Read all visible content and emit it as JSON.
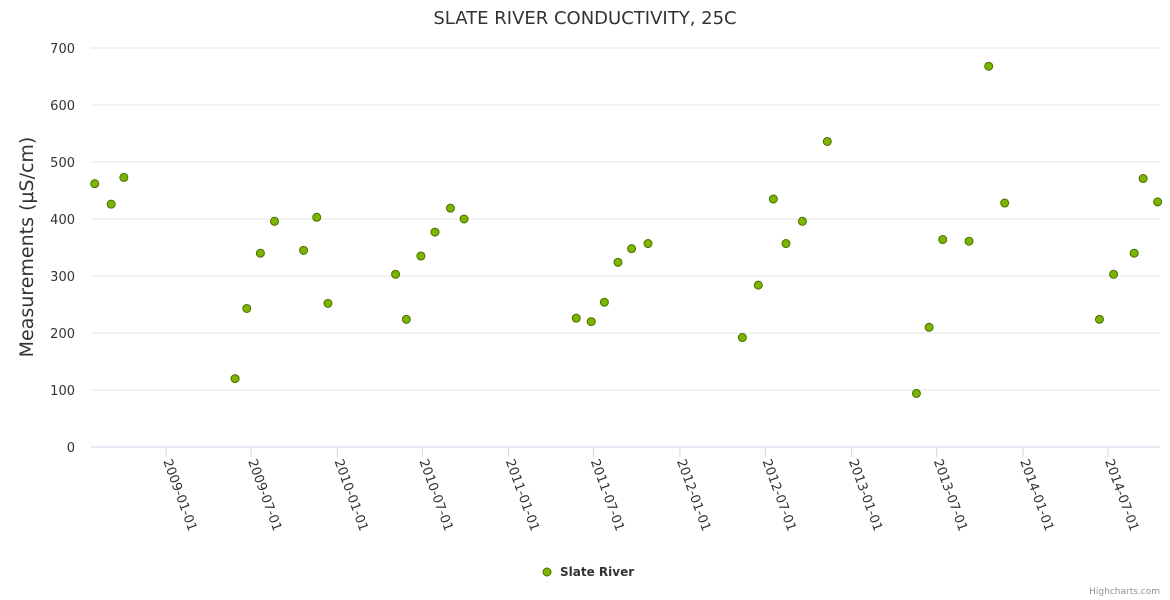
{
  "chart_data": {
    "type": "scatter",
    "title": "SLATE RIVER CONDUCTIVITY, 25C",
    "xlabel": "",
    "ylabel": "Measurements (μS/cm)",
    "ylim": [
      0,
      700
    ],
    "yticks": [
      0,
      100,
      200,
      300,
      400,
      500,
      600,
      700
    ],
    "xlim": [
      "2008-07-25",
      "2014-10-20"
    ],
    "xticks": [
      "2009-01-01",
      "2009-07-01",
      "2010-01-01",
      "2010-07-01",
      "2011-01-01",
      "2011-07-01",
      "2012-01-01",
      "2012-07-01",
      "2013-01-01",
      "2013-07-01",
      "2014-01-01",
      "2014-07-01"
    ],
    "grid": true,
    "legend": "bottom-center",
    "series": [
      {
        "name": "Slate River",
        "color": "#7cb500",
        "border": "#4a6e00",
        "points": [
          {
            "x": "2008-08-02",
            "y": 462
          },
          {
            "x": "2008-09-06",
            "y": 426
          },
          {
            "x": "2008-10-03",
            "y": 473
          },
          {
            "x": "2009-05-28",
            "y": 120
          },
          {
            "x": "2009-06-22",
            "y": 243
          },
          {
            "x": "2009-07-21",
            "y": 340
          },
          {
            "x": "2009-08-20",
            "y": 396
          },
          {
            "x": "2009-10-21",
            "y": 345
          },
          {
            "x": "2009-11-18",
            "y": 403
          },
          {
            "x": "2009-12-12",
            "y": 252
          },
          {
            "x": "2010-05-05",
            "y": 303
          },
          {
            "x": "2010-05-28",
            "y": 224
          },
          {
            "x": "2010-06-28",
            "y": 335
          },
          {
            "x": "2010-07-28",
            "y": 377
          },
          {
            "x": "2010-08-30",
            "y": 419
          },
          {
            "x": "2010-09-28",
            "y": 400
          },
          {
            "x": "2011-05-25",
            "y": 226
          },
          {
            "x": "2011-06-26",
            "y": 220
          },
          {
            "x": "2011-07-24",
            "y": 254
          },
          {
            "x": "2011-08-22",
            "y": 324
          },
          {
            "x": "2011-09-20",
            "y": 348
          },
          {
            "x": "2011-10-25",
            "y": 357
          },
          {
            "x": "2012-05-13",
            "y": 192
          },
          {
            "x": "2012-06-16",
            "y": 284
          },
          {
            "x": "2012-07-18",
            "y": 435
          },
          {
            "x": "2012-08-14",
            "y": 357
          },
          {
            "x": "2012-09-18",
            "y": 396
          },
          {
            "x": "2012-11-10",
            "y": 536
          },
          {
            "x": "2013-05-19",
            "y": 94
          },
          {
            "x": "2013-06-15",
            "y": 210
          },
          {
            "x": "2013-07-14",
            "y": 364
          },
          {
            "x": "2013-09-08",
            "y": 361
          },
          {
            "x": "2013-10-20",
            "y": 668
          },
          {
            "x": "2013-11-23",
            "y": 428
          },
          {
            "x": "2014-06-13",
            "y": 224
          },
          {
            "x": "2014-07-13",
            "y": 303
          },
          {
            "x": "2014-08-26",
            "y": 340
          },
          {
            "x": "2014-09-14",
            "y": 471
          },
          {
            "x": "2014-10-15",
            "y": 430
          }
        ]
      }
    ]
  },
  "credits": "Highcharts.com"
}
